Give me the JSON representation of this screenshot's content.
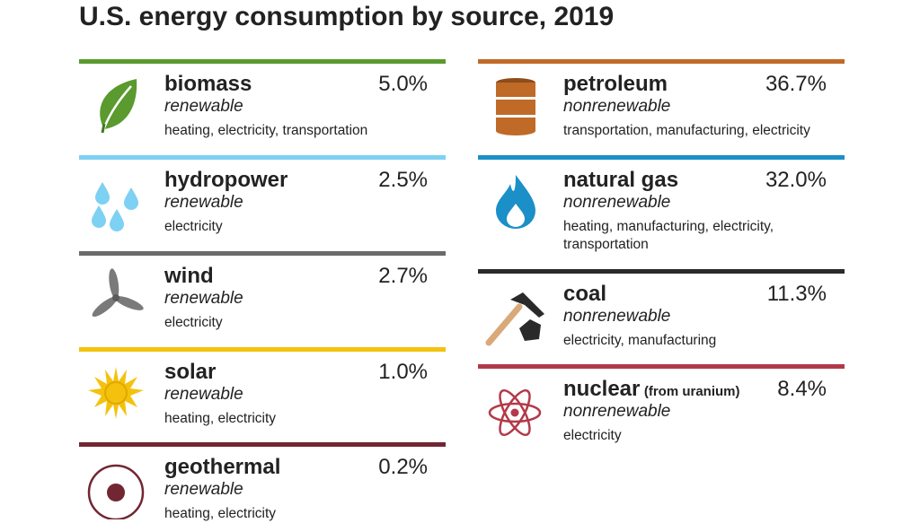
{
  "title": "U.S. energy consumption by source, 2019",
  "colors": {
    "biomass": "#5a9a2e",
    "hydropower": "#7dd1f2",
    "wind": "#6b6b6b",
    "solar": "#f4c20d",
    "geothermal": "#722632",
    "petroleum": "#c06a28",
    "natural_gas": "#1b8fc8",
    "coal": "#2a2a2a",
    "nuclear": "#b23a48"
  },
  "chart_data": {
    "type": "table",
    "title": "U.S. energy consumption by source, 2019",
    "unit": "percent of total",
    "columns": [
      "source",
      "share",
      "type",
      "uses"
    ],
    "rows": [
      {
        "source": "biomass",
        "share": 5.0,
        "type": "renewable",
        "uses": "heating, electricity, transportation"
      },
      {
        "source": "hydropower",
        "share": 2.5,
        "type": "renewable",
        "uses": "electricity"
      },
      {
        "source": "wind",
        "share": 2.7,
        "type": "renewable",
        "uses": "electricity"
      },
      {
        "source": "solar",
        "share": 1.0,
        "type": "renewable",
        "uses": "heating, electricity"
      },
      {
        "source": "geothermal",
        "share": 0.2,
        "type": "renewable",
        "uses": "heating, electricity"
      },
      {
        "source": "petroleum",
        "share": 36.7,
        "type": "nonrenewable",
        "uses": "transportation, manufacturing, electricity"
      },
      {
        "source": "natural gas",
        "share": 32.0,
        "type": "nonrenewable",
        "uses": "heating, manufacturing, electricity, transportation"
      },
      {
        "source": "coal",
        "share": 11.3,
        "type": "nonrenewable",
        "uses": "electricity, manufacturing"
      },
      {
        "source": "nuclear",
        "share": 8.4,
        "type": "nonrenewable",
        "uses": "electricity",
        "qualifier": "(from uranium)"
      }
    ]
  },
  "left": [
    {
      "name": "biomass",
      "pct": "5.0%",
      "type": "renewable",
      "uses": "heating, electricity, transportation",
      "icon": "leaf-icon"
    },
    {
      "name": "hydropower",
      "pct": "2.5%",
      "type": "renewable",
      "uses": "electricity",
      "icon": "water-drops-icon"
    },
    {
      "name": "wind",
      "pct": "2.7%",
      "type": "renewable",
      "uses": "electricity",
      "icon": "wind-turbine-icon"
    },
    {
      "name": "solar",
      "pct": "1.0%",
      "type": "renewable",
      "uses": "heating, electricity",
      "icon": "sun-icon"
    },
    {
      "name": "geothermal",
      "pct": "0.2%",
      "type": "renewable",
      "uses": "heating, electricity",
      "icon": "geothermal-icon"
    }
  ],
  "right": [
    {
      "name": "petroleum",
      "pct": "36.7%",
      "type": "nonrenewable",
      "uses": "transportation, manufacturing, electricity",
      "icon": "oil-barrel-icon"
    },
    {
      "name": "natural gas",
      "pct": "32.0%",
      "type": "nonrenewable",
      "uses": "heating, manufacturing, electricity, transportation",
      "icon": "flame-icon"
    },
    {
      "name": "coal",
      "pct": "11.3%",
      "type": "nonrenewable",
      "uses": "electricity, manufacturing",
      "icon": "pickaxe-coal-icon"
    },
    {
      "name": "nuclear",
      "qualifier": "(from uranium)",
      "pct": "8.4%",
      "type": "nonrenewable",
      "uses": "electricity",
      "icon": "atom-icon"
    }
  ]
}
